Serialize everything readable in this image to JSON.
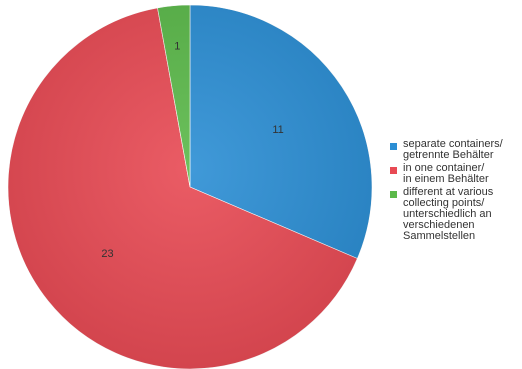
{
  "chart_data": {
    "type": "pie",
    "title": "",
    "start_angle_deg": 0,
    "direction": "clockwise",
    "slices": [
      {
        "label": "separate containers/\ngetrennte Behälter",
        "value": 11,
        "color": "#2b8ed4"
      },
      {
        "label": "in one container/\nin einem Behälter",
        "value": 23,
        "color": "#e84a54"
      },
      {
        "label": "different at various\ncollecting points/\nunterschiedlich an\nverschiedenen\nSammelstellen",
        "value": 1,
        "color": "#5bb94a"
      }
    ],
    "legend_position": "right"
  }
}
